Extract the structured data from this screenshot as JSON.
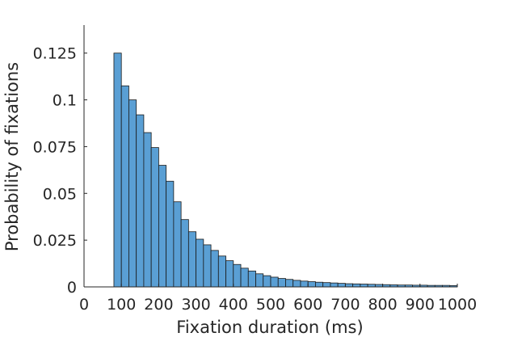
{
  "chart_data": {
    "type": "bar",
    "title": "",
    "xlabel": "Fixation duration (ms)",
    "ylabel": "Probability of fixations",
    "xlim": [
      0,
      1000
    ],
    "ylim": [
      0,
      0.14
    ],
    "x_ticks": [
      0,
      100,
      200,
      300,
      400,
      500,
      600,
      700,
      800,
      900,
      1000
    ],
    "x_tick_labels": [
      "0",
      "100",
      "200",
      "300",
      "400",
      "500",
      "600",
      "700",
      "800",
      "900",
      "1000"
    ],
    "y_ticks": [
      0,
      0.025,
      0.05,
      0.075,
      0.1,
      0.125
    ],
    "y_tick_labels": [
      "0",
      "0.025",
      "0.05",
      "0.075",
      "0.1",
      "0.125"
    ],
    "grid": false,
    "bar_color": "#5a9fd4",
    "bin_width": 20,
    "bin_start": 80,
    "bins": [
      80,
      100,
      120,
      140,
      160,
      180,
      200,
      220,
      240,
      260,
      280,
      300,
      320,
      340,
      360,
      380,
      400,
      420,
      440,
      460,
      480,
      500,
      520,
      540,
      560,
      580,
      600,
      620,
      640,
      660,
      680,
      700,
      720,
      740,
      760,
      780,
      800,
      820,
      840,
      860,
      880,
      900,
      920,
      940,
      960,
      980
    ],
    "values": [
      0.125,
      0.1075,
      0.1,
      0.092,
      0.0825,
      0.0745,
      0.065,
      0.0565,
      0.0455,
      0.036,
      0.0295,
      0.0255,
      0.0225,
      0.0195,
      0.0165,
      0.014,
      0.012,
      0.01,
      0.0085,
      0.007,
      0.006,
      0.0052,
      0.0045,
      0.004,
      0.0035,
      0.0031,
      0.0028,
      0.0025,
      0.0023,
      0.0021,
      0.0019,
      0.0017,
      0.0016,
      0.0015,
      0.0014,
      0.0013,
      0.0012,
      0.0011,
      0.001,
      0.001,
      0.0009,
      0.0009,
      0.0008,
      0.0008,
      0.0008,
      0.0007
    ]
  }
}
